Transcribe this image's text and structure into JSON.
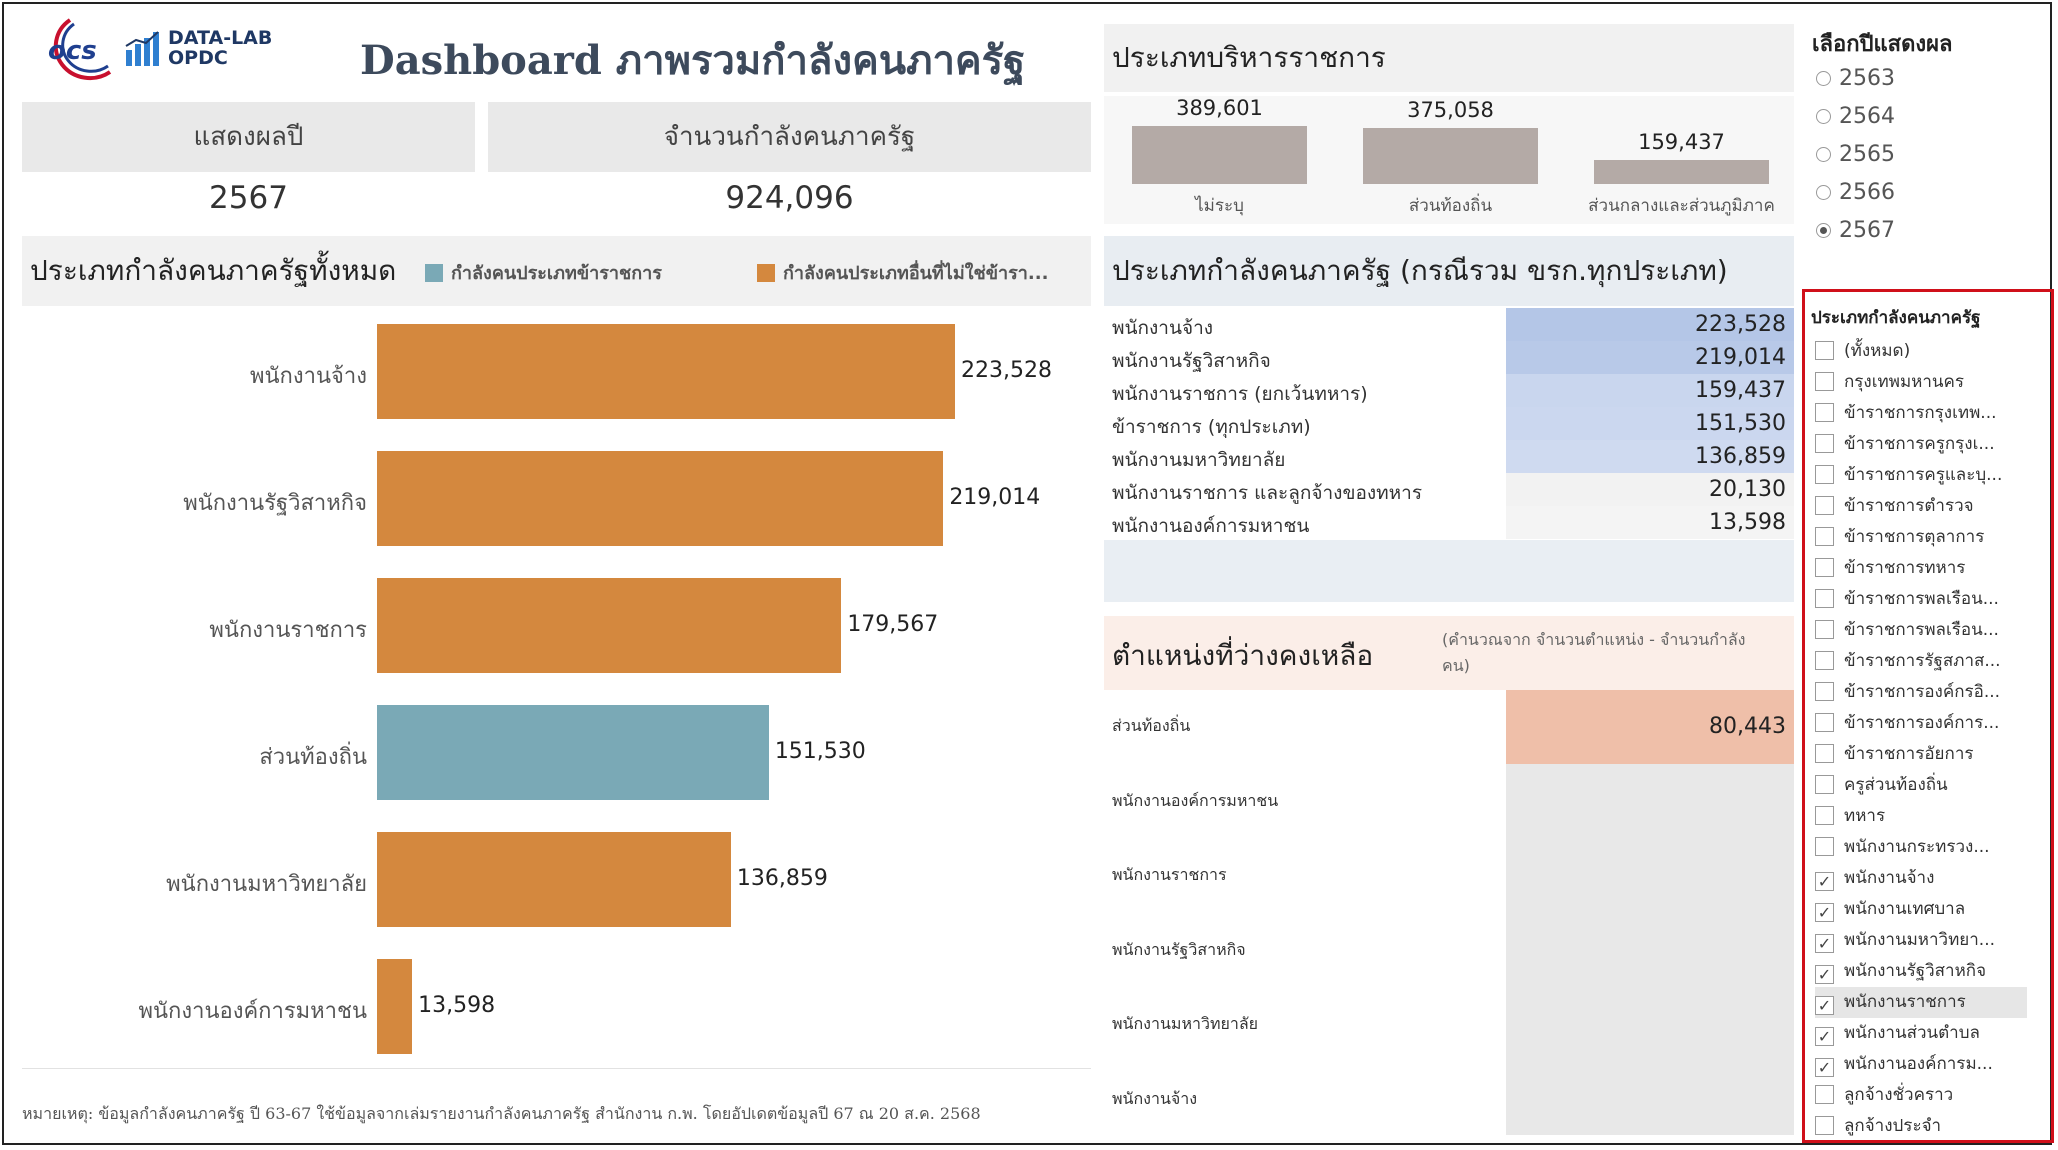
{
  "header": {
    "logo_ows": "ocs",
    "logo_datalab_1": "DATA-LAB",
    "logo_datalab_2": "OPDC",
    "title": "Dashboard ภาพรวมกำลังคนภาครัฐ",
    "brand_color": "#1f3f8f",
    "accent_red": "#c8102e"
  },
  "kpi": {
    "year_label": "แสดงผลปี",
    "year_value": "2567",
    "total_label": "จำนวนกำลังคนภาครัฐ",
    "total_value": "924,096"
  },
  "main_chart": {
    "title": "ประเภทกำลังคนภาครัฐทั้งหมด",
    "legend": [
      {
        "label": "กำลังคนประเภทข้าราชการ",
        "color": "#7aa9b6"
      },
      {
        "label": "กำลังคนประเภทอื่นที่ไม่ใช่ข้ารา...",
        "color": "#d4883e"
      }
    ],
    "note": "หมายเหตุ: ข้อมูลกำลังคนภาครัฐ ปี 63-67 ใช้ข้อมูลจากเล่มรายงานกำลังคนภาครัฐ สำนักงาน ก.พ. โดยอัปเดตข้อมูลปี 67 ณ 20 ส.ค. 2568"
  },
  "chart_data": [
    {
      "type": "bar",
      "orientation": "horizontal",
      "categories": [
        "พนักงานจ้าง",
        "พนักงานรัฐวิสาหกิจ",
        "พนักงานราชการ",
        "ส่วนท้องถิ่น",
        "พนักงานมหาวิทยาลัย",
        "พนักงานองค์การมหาชน"
      ],
      "values": [
        223528,
        219014,
        179567,
        151530,
        136859,
        13598
      ],
      "value_labels": [
        "223,528",
        "219,014",
        "179,567",
        "151,530",
        "136,859",
        "13,598"
      ],
      "series_type": [
        "other",
        "other",
        "other",
        "civil",
        "other",
        "other"
      ],
      "xlim": [
        0,
        223528
      ]
    },
    {
      "type": "bar",
      "categories": [
        "ไม่ระบุ",
        "ส่วนท้องถิ่น",
        "ส่วนกลางและส่วนภูมิภาค"
      ],
      "values": [
        389601,
        375058,
        159437
      ],
      "value_labels": [
        "389,601",
        "375,058",
        "159,437"
      ],
      "ylim": [
        0,
        389601
      ]
    }
  ],
  "admin_chart": {
    "title": "ประเภทบริหารราชการ"
  },
  "type_table": {
    "title": "ประเภทกำลังคนภาครัฐ (กรณีรวม ขรก.ทุกประเภท)",
    "rows": [
      {
        "label": "พนักงานจ้าง",
        "value": "223,528",
        "shade": "#b4c6e7"
      },
      {
        "label": "พนักงานรัฐวิสาหกิจ",
        "value": "219,014",
        "shade": "#b8c9e8"
      },
      {
        "label": "พนักงานราชการ (ยกเว้นทหาร)",
        "value": "159,437",
        "shade": "#c9d6ee"
      },
      {
        "label": "ข้าราชการ (ทุกประเภท)",
        "value": "151,530",
        "shade": "#cbd7ef"
      },
      {
        "label": "พนักงานมหาวิทยาลัย",
        "value": "136,859",
        "shade": "#cfdaf0"
      },
      {
        "label": "พนักงานราชการ และลูกจ้างของทหาร",
        "value": "20,130",
        "shade": "#f2f2f2"
      },
      {
        "label": "พนักงานองค์การมหาชน",
        "value": "13,598",
        "shade": "#f4f4f4"
      }
    ]
  },
  "vacancy": {
    "title": "ตำแหน่งที่ว่างคงเหลือ",
    "subtitle_1": "(คำนวณจาก จำนวนตำแหน่ง - จำนวนกำลัง",
    "subtitle_2": "คน)",
    "rows": [
      {
        "label": "ส่วนท้องถิ่น",
        "value": "80,443"
      },
      {
        "label": "พนักงานองค์การมหาชน",
        "value": ""
      },
      {
        "label": "พนักงานราชการ",
        "value": ""
      },
      {
        "label": "พนักงานรัฐวิสาหกิจ",
        "value": ""
      },
      {
        "label": "พนักงานมหาวิทยาลัย",
        "value": ""
      },
      {
        "label": "พนักงานจ้าง",
        "value": ""
      }
    ],
    "highlight_color": "#efbfa9"
  },
  "year_filter": {
    "title": "เลือกปีแสดงผล",
    "options": [
      {
        "label": "2563",
        "selected": false
      },
      {
        "label": "2564",
        "selected": false
      },
      {
        "label": "2565",
        "selected": false
      },
      {
        "label": "2566",
        "selected": false
      },
      {
        "label": "2567",
        "selected": true
      }
    ]
  },
  "type_filter": {
    "title": "ประเภทกำลังคนภาครัฐ",
    "border_color": "#d0101a",
    "items": [
      {
        "label": "(ทั้งหมด)",
        "checked": false
      },
      {
        "label": "กรุงเทพมหานคร",
        "checked": false
      },
      {
        "label": "ข้าราชการกรุงเทพ...",
        "checked": false
      },
      {
        "label": "ข้าราชการครูกรุงเ...",
        "checked": false
      },
      {
        "label": "ข้าราชการครูและบุ...",
        "checked": false
      },
      {
        "label": "ข้าราชการตำรวจ",
        "checked": false
      },
      {
        "label": "ข้าราชการตุลาการ",
        "checked": false
      },
      {
        "label": "ข้าราชการทหาร",
        "checked": false
      },
      {
        "label": "ข้าราชการพลเรือน...",
        "checked": false
      },
      {
        "label": "ข้าราชการพลเรือน...",
        "checked": false
      },
      {
        "label": "ข้าราชการรัฐสภาส...",
        "checked": false
      },
      {
        "label": "ข้าราชการองค์กรอิ...",
        "checked": false
      },
      {
        "label": "ข้าราชการองค์การ...",
        "checked": false
      },
      {
        "label": "ข้าราชการอัยการ",
        "checked": false
      },
      {
        "label": "ครูส่วนท้องถิ่น",
        "checked": false
      },
      {
        "label": "ทหาร",
        "checked": false
      },
      {
        "label": "พนักงานกระทรวง...",
        "checked": false
      },
      {
        "label": "พนักงานจ้าง",
        "checked": true
      },
      {
        "label": "พนักงานเทศบาล",
        "checked": true
      },
      {
        "label": "พนักงานมหาวิทยา...",
        "checked": true
      },
      {
        "label": "พนักงานรัฐวิสาหกิจ",
        "checked": true
      },
      {
        "label": "พนักงานราชการ",
        "checked": true,
        "highlight": true
      },
      {
        "label": "พนักงานส่วนตำบล",
        "checked": true
      },
      {
        "label": "พนักงานองค์การม...",
        "checked": true
      },
      {
        "label": "ลูกจ้างชั่วคราว",
        "checked": false
      },
      {
        "label": "ลูกจ้างประจำ",
        "checked": false
      }
    ]
  }
}
